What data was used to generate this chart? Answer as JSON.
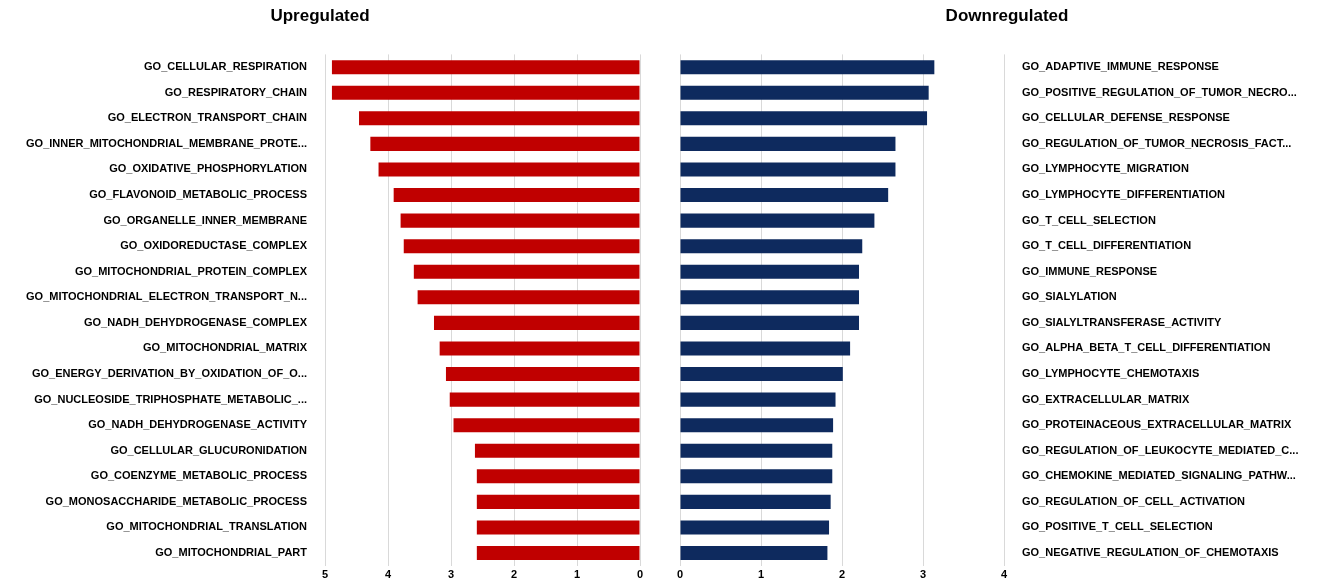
{
  "chart_data": [
    {
      "type": "bar",
      "orientation": "horizontal",
      "title": "Upregulated",
      "color": "#c00000",
      "grid": "x",
      "categories": [
        "GO_CELLULAR_RESPIRATION",
        "GO_RESPIRATORY_CHAIN",
        "GO_ELECTRON_TRANSPORT_CHAIN",
        "GO_INNER_MITOCHONDRIAL_MEMBRANE_PROTE...",
        "GO_OXIDATIVE_PHOSPHORYLATION",
        "GO_FLAVONOID_METABOLIC_PROCESS",
        "GO_ORGANELLE_INNER_MEMBRANE",
        "GO_OXIDOREDUCTASE_COMPLEX",
        "GO_MITOCHONDRIAL_PROTEIN_COMPLEX",
        "GO_MITOCHONDRIAL_ELECTRON_TRANSPORT_N...",
        "GO_NADH_DEHYDROGENASE_COMPLEX",
        "GO_MITOCHONDRIAL_MATRIX",
        "GO_ENERGY_DERIVATION_BY_OXIDATION_OF_O...",
        "GO_NUCLEOSIDE_TRIPHOSPHATE_METABOLIC_...",
        "GO_NADH_DEHYDROGENASE_ACTIVITY",
        "GO_CELLULAR_GLUCURONIDATION",
        "GO_COENZYME_METABOLIC_PROCESS",
        "GO_MONOSACCHARIDE_METABOLIC_PROCESS",
        "GO_MITOCHONDRIAL_TRANSLATION",
        "GO_MITOCHONDRIAL_PART"
      ],
      "values": [
        4.89,
        4.89,
        4.46,
        4.28,
        4.15,
        3.91,
        3.8,
        3.75,
        3.59,
        3.53,
        3.27,
        3.18,
        3.08,
        3.02,
        2.96,
        2.62,
        2.59,
        2.59,
        2.59,
        2.59
      ],
      "xlim": [
        5,
        0
      ],
      "xticks": [
        5,
        4,
        3,
        2,
        1,
        0
      ]
    },
    {
      "type": "bar",
      "orientation": "horizontal",
      "title": "Downregulated",
      "color": "#0e2a5e",
      "grid": "x",
      "categories": [
        "GO_ADAPTIVE_IMMUNE_RESPONSE",
        "GO_POSITIVE_REGULATION_OF_TUMOR_NECRO...",
        "GO_CELLULAR_DEFENSE_RESPONSE",
        "GO_REGULATION_OF_TUMOR_NECROSIS_FACT...",
        "GO_LYMPHOCYTE_MIGRATION",
        "GO_LYMPHOCYTE_DIFFERENTIATION",
        "GO_T_CELL_SELECTION",
        "GO_T_CELL_DIFFERENTIATION",
        "GO_IMMUNE_RESPONSE",
        "GO_SIALYLATION",
        "GO_SIALYLTRANSFERASE_ACTIVITY",
        "GO_ALPHA_BETA_T_CELL_DIFFERENTIATION",
        "GO_LYMPHOCYTE_CHEMOTAXIS",
        "GO_EXTRACELLULAR_MATRIX",
        "GO_PROTEINACEOUS_EXTRACELLULAR_MATRIX",
        "GO_REGULATION_OF_LEUKOCYTE_MEDIATED_C...",
        "GO_CHEMOKINE_MEDIATED_SIGNALING_PATHW...",
        "GO_REGULATION_OF_CELL_ACTIVATION",
        "GO_POSITIVE_T_CELL_SELECTION",
        "GO_NEGATIVE_REGULATION_OF_CHEMOTAXIS"
      ],
      "values": [
        3.14,
        3.07,
        3.05,
        2.66,
        2.66,
        2.57,
        2.4,
        2.25,
        2.21,
        2.21,
        2.21,
        2.1,
        2.01,
        1.92,
        1.89,
        1.88,
        1.88,
        1.86,
        1.84,
        1.82
      ],
      "xlim": [
        0,
        4
      ],
      "xticks": [
        0,
        1,
        2,
        3,
        4
      ]
    }
  ]
}
